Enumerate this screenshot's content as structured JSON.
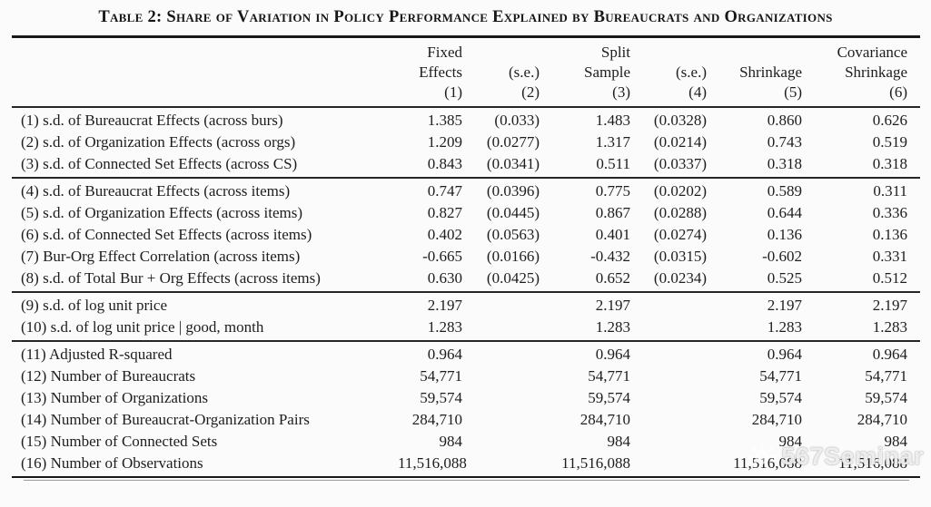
{
  "title": "Table 2: Share of Variation in Policy Performance Explained by Bureaucrats and Organizations",
  "table": {
    "columns": [
      {
        "id": "row-label",
        "lines": []
      },
      {
        "id": "fixed-effects",
        "lines": [
          "Fixed",
          "Effects",
          "(1)"
        ]
      },
      {
        "id": "se-fixed",
        "lines": [
          "",
          "(s.e.)",
          "(2)"
        ]
      },
      {
        "id": "split-sample",
        "lines": [
          "Split",
          "Sample",
          "(3)"
        ]
      },
      {
        "id": "se-split",
        "lines": [
          "",
          "(s.e.)",
          "(4)"
        ]
      },
      {
        "id": "shrinkage",
        "lines": [
          "",
          "Shrinkage",
          "(5)"
        ]
      },
      {
        "id": "covariance-shrinkage",
        "lines": [
          "Covariance",
          "Shrinkage",
          "(6)"
        ]
      }
    ],
    "groups": [
      {
        "rows": [
          {
            "label": "(1) s.d. of Bureaucrat Effects (across burs)",
            "values": [
              "1.385",
              "(0.033)",
              "1.483",
              "(0.0328)",
              "0.860",
              "0.626"
            ]
          },
          {
            "label": "(2) s.d. of Organization Effects (across orgs)",
            "values": [
              "1.209",
              "(0.0277)",
              "1.317",
              "(0.0214)",
              "0.743",
              "0.519"
            ]
          },
          {
            "label": "(3) s.d. of Connected Set Effects (across CS)",
            "values": [
              "0.843",
              "(0.0341)",
              "0.511",
              "(0.0337)",
              "0.318",
              "0.318"
            ]
          }
        ]
      },
      {
        "rows": [
          {
            "label": "(4) s.d. of Bureaucrat Effects (across items)",
            "values": [
              "0.747",
              "(0.0396)",
              "0.775",
              "(0.0202)",
              "0.589",
              "0.311"
            ]
          },
          {
            "label": "(5) s.d. of Organization Effects (across items)",
            "values": [
              "0.827",
              "(0.0445)",
              "0.867",
              "(0.0288)",
              "0.644",
              "0.336"
            ]
          },
          {
            "label": "(6) s.d. of Connected Set Effects (across items)",
            "values": [
              "0.402",
              "(0.0563)",
              "0.401",
              "(0.0274)",
              "0.136",
              "0.136"
            ]
          },
          {
            "label": "(7) Bur-Org Effect Correlation (across items)",
            "values": [
              "-0.665",
              "(0.0166)",
              "-0.432",
              "(0.0315)",
              "-0.602",
              "0.331"
            ]
          },
          {
            "label": "(8) s.d. of Total Bur + Org Effects (across items)",
            "values": [
              "0.630",
              "(0.0425)",
              "0.652",
              "(0.0234)",
              "0.525",
              "0.512"
            ]
          }
        ]
      },
      {
        "rows": [
          {
            "label": "(9) s.d. of log unit price",
            "values": [
              "2.197",
              "",
              "2.197",
              "",
              "2.197",
              "2.197"
            ]
          },
          {
            "label": "(10) s.d. of log unit price | good, month",
            "values": [
              "1.283",
              "",
              "1.283",
              "",
              "1.283",
              "1.283"
            ]
          }
        ]
      },
      {
        "rows": [
          {
            "label": "(11) Adjusted R-squared",
            "values": [
              "0.964",
              "",
              "0.964",
              "",
              "0.964",
              "0.964"
            ]
          },
          {
            "label": "(12) Number of Bureaucrats",
            "values": [
              "54,771",
              "",
              "54,771",
              "",
              "54,771",
              "54,771"
            ]
          },
          {
            "label": "(13) Number of Organizations",
            "values": [
              "59,574",
              "",
              "59,574",
              "",
              "59,574",
              "59,574"
            ]
          },
          {
            "label": "(14) Number of Bureaucrat-Organization Pairs",
            "values": [
              "284,710",
              "",
              "284,710",
              "",
              "284,710",
              "284,710"
            ]
          },
          {
            "label": "(15) Number of Connected Sets",
            "values": [
              "984",
              "",
              "984",
              "",
              "984",
              "984"
            ]
          },
          {
            "label": "(16) Number of Observations",
            "values": [
              "11,516,088",
              "",
              "11,516,088",
              "",
              "11,516,088",
              "11,516,088"
            ]
          }
        ]
      }
    ]
  },
  "watermark": {
    "text": "567Seminar"
  }
}
